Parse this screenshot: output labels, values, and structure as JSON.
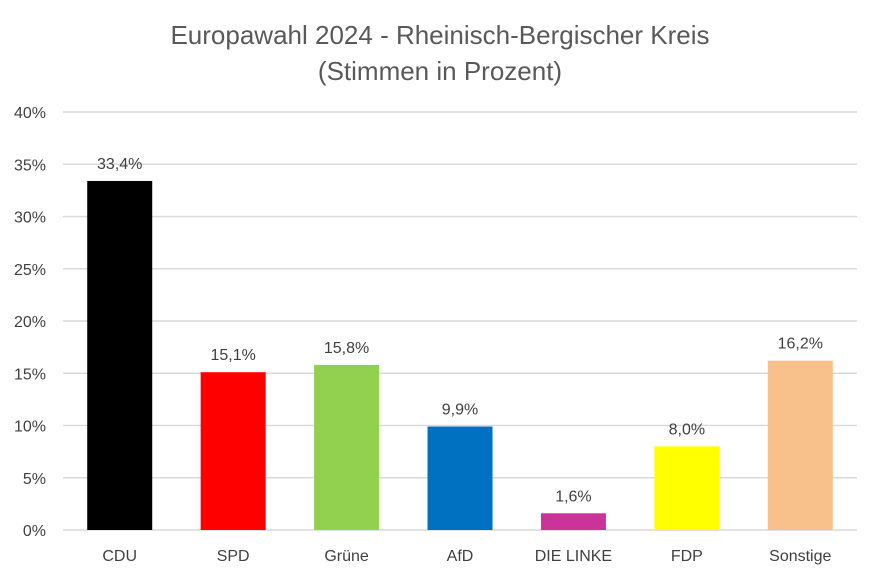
{
  "chart_data": {
    "type": "bar",
    "title": "Europawahl 2024 - Rheinisch-Bergischer Kreis",
    "subtitle": "(Stimmen in Prozent)",
    "categories": [
      "CDU",
      "SPD",
      "Grüne",
      "AfD",
      "DIE LINKE",
      "FDP",
      "Sonstige"
    ],
    "values": [
      33.4,
      15.1,
      15.8,
      9.9,
      1.6,
      8.0,
      16.2
    ],
    "value_labels": [
      "33,4%",
      "15,1%",
      "15,8%",
      "9,9%",
      "1,6%",
      "8,0%",
      "16,2%"
    ],
    "colors": [
      "#000000",
      "#ff0000",
      "#92d050",
      "#0070c0",
      "#cc3399",
      "#ffff00",
      "#f8c08a"
    ],
    "y_ticks": [
      0,
      5,
      10,
      15,
      20,
      25,
      30,
      35,
      40
    ],
    "y_tick_labels": [
      "0%",
      "5%",
      "10%",
      "15%",
      "20%",
      "25%",
      "30%",
      "35%",
      "40%"
    ],
    "ylim": [
      0,
      40
    ],
    "grid": true,
    "legend": "none"
  }
}
